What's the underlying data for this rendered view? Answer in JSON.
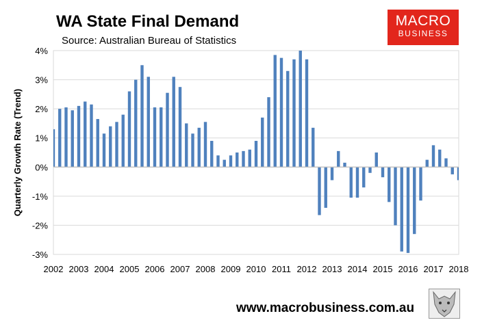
{
  "chart_data": {
    "type": "bar",
    "title": "WA State Final Demand",
    "subtitle": "Source: Australian Bureau of Statistics",
    "ylabel": "Quarterly Growth Rate (Trend)",
    "xlabel": "",
    "ylim": [
      -3,
      4
    ],
    "yticks": [
      -3,
      -2,
      -1,
      0,
      1,
      2,
      3,
      4
    ],
    "ytick_labels": [
      "-3%",
      "-2%",
      "-1%",
      "0%",
      "1%",
      "2%",
      "3%",
      "4%"
    ],
    "xlim": [
      2002.0,
      2018.0
    ],
    "xtick_labels": [
      "2002",
      "2003",
      "2004",
      "2005",
      "2006",
      "2007",
      "2008",
      "2009",
      "2010",
      "2011",
      "2012",
      "2013",
      "2014",
      "2015",
      "2016",
      "2017",
      "2018"
    ],
    "grid": true,
    "color": "#4f81bd",
    "series": [
      {
        "x": [
          2002.0,
          2002.25,
          2002.5,
          2002.75,
          2003.0,
          2003.25,
          2003.5,
          2003.75,
          2004.0,
          2004.25,
          2004.5,
          2004.75,
          2005.0,
          2005.25,
          2005.5,
          2005.75,
          2006.0,
          2006.25,
          2006.5,
          2006.75,
          2007.0,
          2007.25,
          2007.5,
          2007.75,
          2008.0,
          2008.25,
          2008.5,
          2008.75,
          2009.0,
          2009.25,
          2009.5,
          2009.75,
          2010.0,
          2010.25,
          2010.5,
          2010.75,
          2011.0,
          2011.25,
          2011.5,
          2011.75,
          2012.0,
          2012.25,
          2012.5,
          2012.75,
          2013.0,
          2013.25,
          2013.5,
          2013.75,
          2014.0,
          2014.25,
          2014.5,
          2014.75,
          2015.0,
          2015.25,
          2015.5,
          2015.75,
          2016.0,
          2016.25,
          2016.5,
          2016.75,
          2017.0,
          2017.25,
          2017.5,
          2017.75,
          2018.0
        ],
        "values": [
          1.3,
          2.0,
          2.05,
          1.95,
          2.1,
          2.25,
          2.15,
          1.65,
          1.15,
          1.4,
          1.55,
          1.8,
          2.6,
          3.0,
          3.5,
          3.1,
          2.05,
          2.05,
          2.55,
          3.1,
          2.75,
          1.5,
          1.15,
          1.35,
          1.55,
          0.9,
          0.4,
          0.25,
          0.4,
          0.5,
          0.55,
          0.6,
          0.9,
          1.7,
          2.4,
          3.85,
          3.75,
          3.3,
          3.7,
          4.0,
          3.7,
          1.35,
          -1.65,
          -1.4,
          -0.45,
          0.55,
          0.15,
          -1.05,
          -1.05,
          -0.7,
          -0.2,
          0.5,
          -0.35,
          -1.2,
          -2.0,
          -2.9,
          -2.95,
          -2.3,
          -1.15,
          0.25,
          0.75,
          0.6,
          0.3,
          -0.25,
          -0.45
        ]
      }
    ]
  },
  "footer": {
    "url": "www.macrobusiness.com.au"
  },
  "logo": {
    "line1": "MACRO",
    "line2": "BUSINESS"
  }
}
